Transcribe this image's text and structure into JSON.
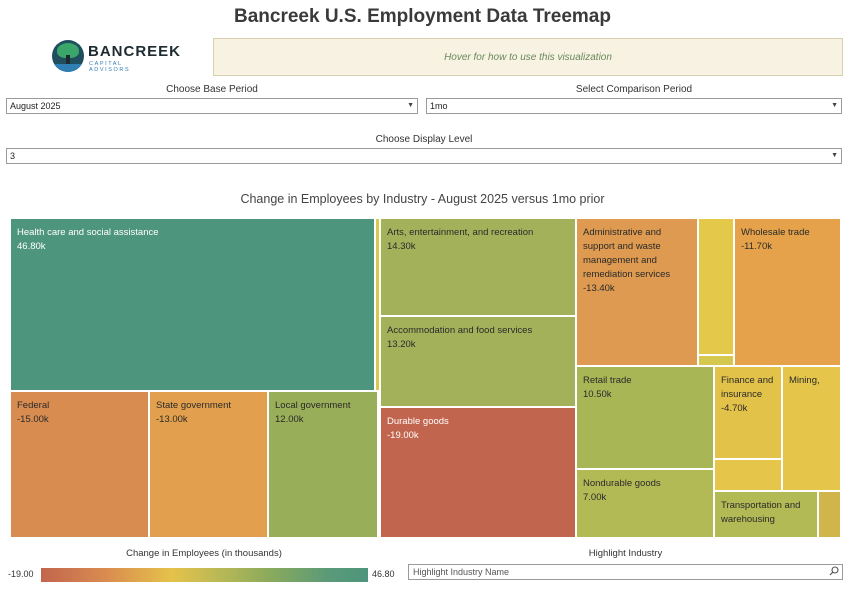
{
  "header": {
    "title": "Bancreek U.S. Employment Data Treemap"
  },
  "logo": {
    "name": "BANCREEK",
    "subtitle": "CAPITAL ADVISORS"
  },
  "hint": {
    "text": "Hover for how to use this visualization"
  },
  "controls": {
    "base_period": {
      "label": "Choose Base Period",
      "value": "August 2025"
    },
    "comparison_period": {
      "label": "Select Comparison Period",
      "value": "1mo"
    },
    "display_level": {
      "label": "Choose Display Level",
      "value": "3"
    }
  },
  "chart_data": {
    "type": "treemap",
    "title": "Change in Employees by Industry - August 2025 versus 1mo prior",
    "value_unit": "thousands",
    "color_range": [
      -19.0,
      46.8
    ],
    "nodes": [
      {
        "name": "Health care and social assistance",
        "value": "46.80k"
      },
      {
        "name": "Arts, entertainment, and recreation",
        "value": "14.30k"
      },
      {
        "name": "Accommodation and food services",
        "value": "13.20k"
      },
      {
        "name": "Administrative and support and waste management and remediation services",
        "value": "-13.40k"
      },
      {
        "name": "Wholesale trade",
        "value": "-11.70k"
      },
      {
        "name": "Federal",
        "value": "-15.00k"
      },
      {
        "name": "State government",
        "value": "-13.00k"
      },
      {
        "name": "Local government",
        "value": "12.00k"
      },
      {
        "name": "Durable goods",
        "value": "-19.00k"
      },
      {
        "name": "Retail trade",
        "value": "10.50k"
      },
      {
        "name": "Finance and insurance",
        "value": "-4.70k"
      },
      {
        "name": "Mining,",
        "value": ""
      },
      {
        "name": "Nondurable goods",
        "value": "7.00k"
      },
      {
        "name": "Transportation and warehousing",
        "value": ""
      },
      {
        "name": "",
        "value": ""
      },
      {
        "name": "",
        "value": ""
      },
      {
        "name": "",
        "value": ""
      },
      {
        "name": "",
        "value": ""
      },
      {
        "name": "",
        "value": ""
      }
    ],
    "colors": [
      "#4e957d",
      "#a3b25a",
      "#a3b25a",
      "#dd9a50",
      "#e5a24a",
      "#d98c50",
      "#e2a04e",
      "#98ae58",
      "#c2654e",
      "#a8b656",
      "#e3c24a",
      "#e5c64a",
      "#b2ba56",
      "#b2ba56",
      "#e3c84a",
      "#d4c84e",
      "#d8ca4e",
      "#e5c54a",
      "#d0b64a"
    ]
  },
  "legend": {
    "title": "Change in Employees (in thousands)",
    "min": "-19.00",
    "max": "46.80"
  },
  "highlight": {
    "label": "Highlight Industry",
    "placeholder": "Highlight Industry Name"
  }
}
